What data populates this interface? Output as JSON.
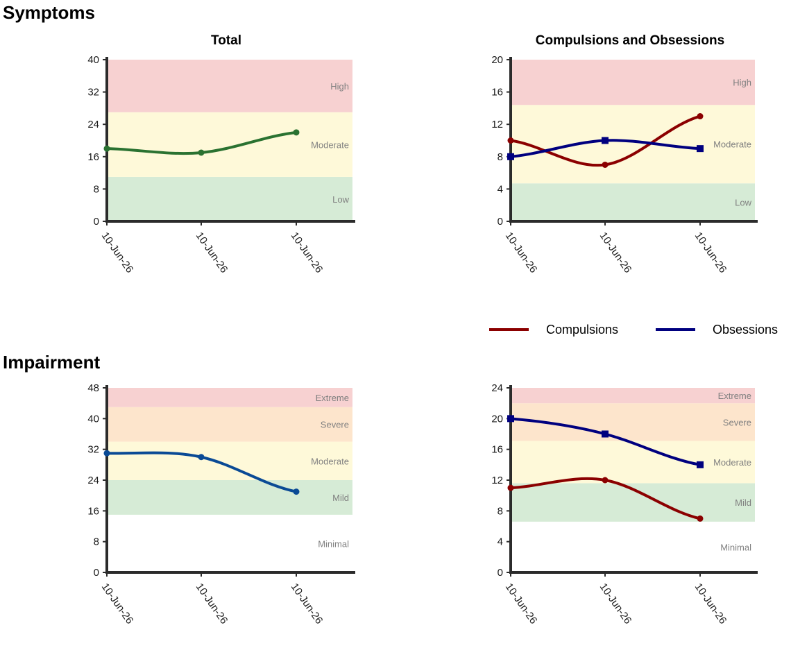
{
  "sections": {
    "symptoms_title": "Symptoms",
    "impairment_title": "Impairment"
  },
  "legend": {
    "items": [
      {
        "label": "Compulsions",
        "color": "#8b0000"
      },
      {
        "label": "Obsessions",
        "color": "#00007f"
      }
    ]
  },
  "band_colors": {
    "High": "#f7d1d1",
    "Extreme": "#f7d1d1",
    "Severe": "#fde5cc",
    "Moderate": "#fef9d9",
    "Low": "#d6ebd6",
    "Mild": "#d6ebd6",
    "Minimal": "#ffffff"
  },
  "chart_data": [
    {
      "id": "symptoms-total",
      "type": "line",
      "title": "Total",
      "categories": [
        "10-Jun-26",
        "10-Jun-26",
        "10-Jun-26"
      ],
      "ylim": [
        0,
        40
      ],
      "yticks": [
        0,
        8,
        16,
        24,
        32,
        40
      ],
      "bands": [
        {
          "label": "Low",
          "from": 0,
          "to": 11
        },
        {
          "label": "Moderate",
          "from": 11,
          "to": 27
        },
        {
          "label": "High",
          "from": 27,
          "to": 40
        }
      ],
      "series": [
        {
          "values": [
            18,
            17,
            22
          ],
          "color": "#2a7231",
          "marker": "circle"
        }
      ]
    },
    {
      "id": "symptoms-co",
      "type": "line",
      "title": "Compulsions and Obsessions",
      "categories": [
        "10-Jun-26",
        "10-Jun-26",
        "10-Jun-26"
      ],
      "ylim": [
        0,
        20
      ],
      "yticks": [
        0,
        4,
        8,
        12,
        16,
        20
      ],
      "bands": [
        {
          "label": "Low",
          "from": 0,
          "to": 4.7
        },
        {
          "label": "Moderate",
          "from": 4.7,
          "to": 14.4
        },
        {
          "label": "High",
          "from": 14.4,
          "to": 20
        }
      ],
      "series": [
        {
          "name": "Compulsions",
          "values": [
            10,
            7,
            13
          ],
          "color": "#8b0000",
          "marker": "circle"
        },
        {
          "name": "Obsessions",
          "values": [
            8,
            10,
            9
          ],
          "color": "#00007f",
          "marker": "square"
        }
      ]
    },
    {
      "id": "impairment-total",
      "type": "line",
      "title": "",
      "categories": [
        "10-Jun-26",
        "10-Jun-26",
        "10-Jun-26"
      ],
      "ylim": [
        0,
        48
      ],
      "yticks": [
        0,
        8,
        16,
        24,
        32,
        40,
        48
      ],
      "bands": [
        {
          "label": "Minimal",
          "from": 0,
          "to": 15
        },
        {
          "label": "Mild",
          "from": 15,
          "to": 24
        },
        {
          "label": "Moderate",
          "from": 24,
          "to": 34
        },
        {
          "label": "Severe",
          "from": 34,
          "to": 43
        },
        {
          "label": "Extreme",
          "from": 43,
          "to": 48
        }
      ],
      "series": [
        {
          "values": [
            31,
            30,
            21
          ],
          "color": "#0a4a95",
          "marker": "circle"
        }
      ]
    },
    {
      "id": "impairment-co",
      "type": "line",
      "title": "",
      "categories": [
        "10-Jun-26",
        "10-Jun-26",
        "10-Jun-26"
      ],
      "ylim": [
        0,
        24
      ],
      "yticks": [
        0,
        4,
        8,
        12,
        16,
        20,
        24
      ],
      "bands": [
        {
          "label": "Minimal",
          "from": 0,
          "to": 6.6
        },
        {
          "label": "Mild",
          "from": 6.6,
          "to": 11.6
        },
        {
          "label": "Moderate",
          "from": 11.6,
          "to": 17.1
        },
        {
          "label": "Severe",
          "from": 17.1,
          "to": 22
        },
        {
          "label": "Extreme",
          "from": 22,
          "to": 24
        }
      ],
      "series": [
        {
          "name": "Compulsions",
          "values": [
            11,
            12,
            7
          ],
          "color": "#8b0000",
          "marker": "circle"
        },
        {
          "name": "Obsessions",
          "values": [
            20,
            18,
            14
          ],
          "color": "#00007f",
          "marker": "square"
        }
      ]
    }
  ]
}
